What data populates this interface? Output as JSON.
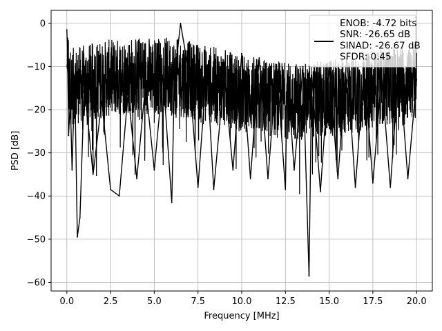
{
  "chart_data": {
    "type": "line",
    "title": "",
    "xlabel": "Frequency [MHz]",
    "ylabel": "PSD [dB]",
    "xlim": [
      -0.9,
      20.9
    ],
    "ylim": [
      -62,
      3
    ],
    "x_ticks": [
      0.0,
      2.5,
      5.0,
      7.5,
      10.0,
      12.5,
      15.0,
      17.5,
      20.0
    ],
    "x_tick_labels": [
      "0.0",
      "2.5",
      "5.0",
      "7.5",
      "10.0",
      "12.5",
      "15.0",
      "17.5",
      "20.0"
    ],
    "y_ticks": [
      0,
      -10,
      -20,
      -30,
      -40,
      -50,
      -60
    ],
    "y_tick_labels": [
      "0",
      "−10",
      "−20",
      "−30",
      "−40",
      "−50",
      "−60"
    ],
    "grid": true,
    "legend_position": "top-right",
    "series": [
      {
        "name": "ENOB: -4.72 bits\nSNR: -26.65 dB\nSINAD: -26.67 dB\nSFDR: 0.45",
        "color": "#000000",
        "x": [
          0.0,
          0.05,
          0.1,
          0.2,
          0.3,
          0.45,
          0.6,
          0.75,
          1.0,
          1.5,
          2.0,
          2.5,
          3.0,
          3.5,
          4.0,
          4.5,
          5.0,
          5.5,
          6.0,
          6.15,
          6.5,
          7.0,
          7.5,
          8.0,
          8.4,
          9.0,
          9.5,
          10.0,
          10.5,
          11.0,
          11.5,
          12.0,
          12.5,
          12.6,
          13.0,
          13.5,
          13.85,
          14.0,
          14.5,
          15.0,
          15.5,
          16.0,
          16.5,
          17.0,
          17.5,
          18.0,
          18.5,
          19.0,
          19.5,
          20.0
        ],
        "y": [
          -1.5,
          -9,
          -26,
          -18,
          -34,
          -12,
          -49.5,
          -45,
          -14,
          -35,
          -18,
          -38.5,
          -40,
          -16,
          -36,
          -14,
          -34,
          -12,
          -41.5,
          -13,
          0,
          -12,
          -38,
          -10,
          -38.5,
          -12,
          -34,
          -7,
          -36,
          -8,
          -36,
          -10,
          -38.5,
          -11,
          -34,
          -10,
          -58.5,
          -12,
          -39,
          -10,
          -36,
          -8,
          -38,
          -10,
          -37,
          -12,
          -38,
          -9,
          -36,
          -13
        ]
      }
    ]
  },
  "legend": {
    "lines": [
      "ENOB: -4.72 bits",
      "SNR: -26.65 dB",
      "SINAD: -26.67 dB",
      "SFDR: 0.45"
    ]
  }
}
